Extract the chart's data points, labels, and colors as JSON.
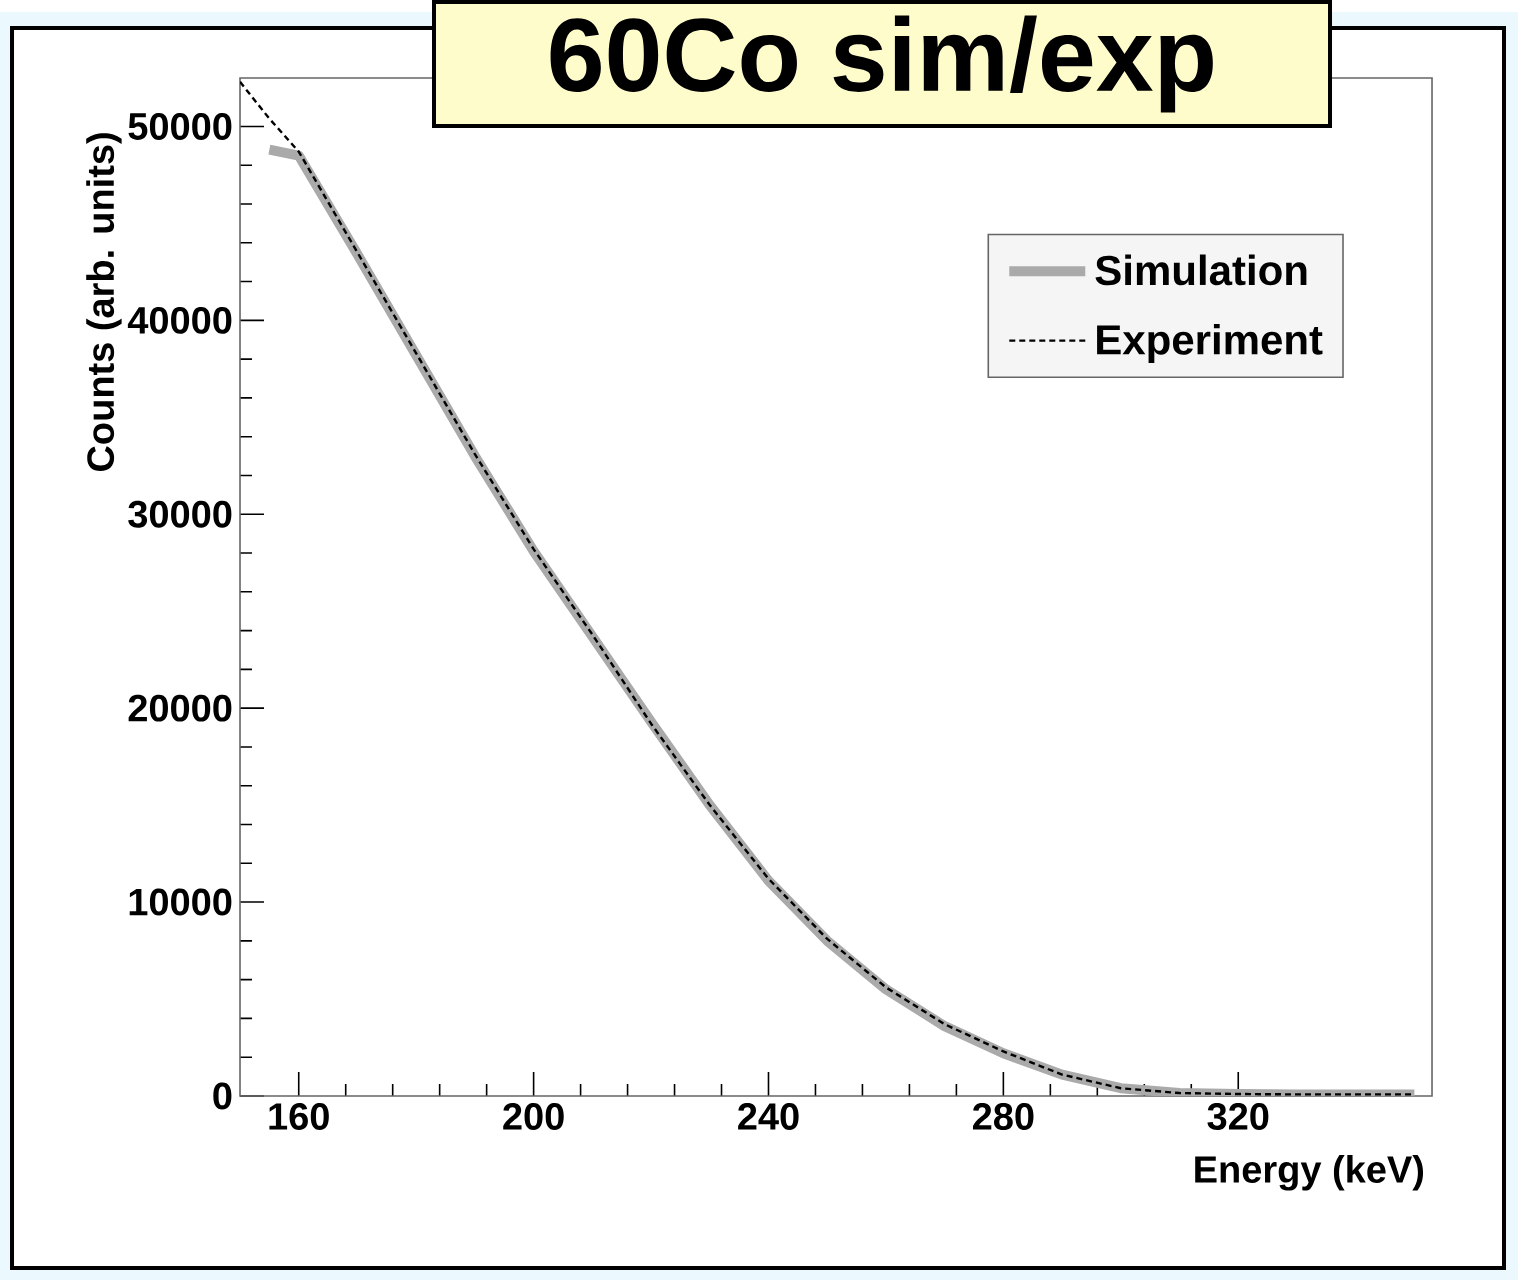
{
  "chart_data": {
    "type": "line",
    "title": "60Co sim/exp",
    "xlabel": "Energy (keV)",
    "ylabel": "Counts (arb. units)",
    "xlim": [
      150,
      353
    ],
    "xticks": [
      160,
      200,
      240,
      280,
      320
    ],
    "ylim": [
      0,
      52500
    ],
    "yticks": [
      0,
      10000,
      20000,
      30000,
      40000,
      50000
    ],
    "grid": false,
    "legend": "top right",
    "series": [
      {
        "name": "Simulation",
        "color": "#aaaaaa",
        "line_style": "solid",
        "x": [
          155,
          160,
          170,
          180,
          190,
          200,
          210,
          220,
          230,
          240,
          250,
          260,
          270,
          280,
          290,
          300,
          310,
          320,
          330,
          340,
          350
        ],
        "values": [
          48800,
          48500,
          43400,
          38200,
          33000,
          28100,
          23700,
          19300,
          15000,
          11100,
          8000,
          5500,
          3600,
          2200,
          1100,
          400,
          150,
          100,
          80,
          80,
          80
        ]
      },
      {
        "name": "Experiment",
        "color": "#000000",
        "line_style": "dashed",
        "x": [
          150,
          155,
          160,
          170,
          180,
          190,
          200,
          210,
          220,
          230,
          240,
          250,
          260,
          270,
          280,
          290,
          300,
          310,
          320,
          330,
          340,
          350
        ],
        "values": [
          52300,
          50400,
          48700,
          43500,
          38300,
          33100,
          28200,
          23800,
          19200,
          15000,
          11200,
          8100,
          5600,
          3700,
          2300,
          1100,
          400,
          150,
          100,
          80,
          80,
          80
        ]
      }
    ]
  }
}
